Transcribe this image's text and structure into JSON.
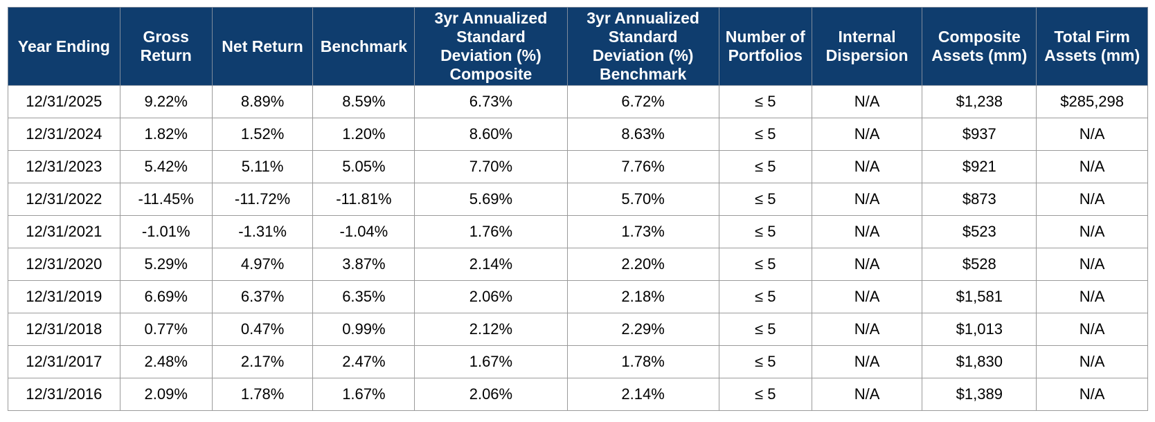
{
  "table": {
    "headers": [
      [
        "Year Ending"
      ],
      [
        "Gross",
        "Return"
      ],
      [
        "Net Return"
      ],
      [
        "Benchmark"
      ],
      [
        "3yr Annualized",
        "Standard",
        "Deviation (%)",
        "Composite"
      ],
      [
        "3yr Annualized",
        "Standard",
        "Deviation (%)",
        "Benchmark"
      ],
      [
        "Number of",
        "Portfolios"
      ],
      [
        "Internal",
        "Dispersion"
      ],
      [
        "Composite",
        "Assets (mm)"
      ],
      [
        "Total Firm",
        "Assets (mm)"
      ]
    ],
    "rows": [
      [
        "12/31/2025",
        "9.22%",
        "8.89%",
        "8.59%",
        "6.73%",
        "6.72%",
        "≤ 5",
        "N/A",
        "$1,238",
        "$285,298"
      ],
      [
        "12/31/2024",
        "1.82%",
        "1.52%",
        "1.20%",
        "8.60%",
        "8.63%",
        "≤ 5",
        "N/A",
        "$937",
        "N/A"
      ],
      [
        "12/31/2023",
        "5.42%",
        "5.11%",
        "5.05%",
        "7.70%",
        "7.76%",
        "≤ 5",
        "N/A",
        "$921",
        "N/A"
      ],
      [
        "12/31/2022",
        "-11.45%",
        "-11.72%",
        "-11.81%",
        "5.69%",
        "5.70%",
        "≤ 5",
        "N/A",
        "$873",
        "N/A"
      ],
      [
        "12/31/2021",
        "-1.01%",
        "-1.31%",
        "-1.04%",
        "1.76%",
        "1.73%",
        "≤ 5",
        "N/A",
        "$523",
        "N/A"
      ],
      [
        "12/31/2020",
        "5.29%",
        "4.97%",
        "3.87%",
        "2.14%",
        "2.20%",
        "≤ 5",
        "N/A",
        "$528",
        "N/A"
      ],
      [
        "12/31/2019",
        "6.69%",
        "6.37%",
        "6.35%",
        "2.06%",
        "2.18%",
        "≤ 5",
        "N/A",
        "$1,581",
        "N/A"
      ],
      [
        "12/31/2018",
        "0.77%",
        "0.47%",
        "0.99%",
        "2.12%",
        "2.29%",
        "≤ 5",
        "N/A",
        "$1,013",
        "N/A"
      ],
      [
        "12/31/2017",
        "2.48%",
        "2.17%",
        "2.47%",
        "1.67%",
        "1.78%",
        "≤ 5",
        "N/A",
        "$1,830",
        "N/A"
      ],
      [
        "12/31/2016",
        "2.09%",
        "1.78%",
        "1.67%",
        "2.06%",
        "2.14%",
        "≤ 5",
        "N/A",
        "$1,389",
        "N/A"
      ]
    ]
  },
  "colors": {
    "header_background": "#0f3d6e",
    "header_text": "#ffffff",
    "grid_lines": "#9a9a9a"
  }
}
